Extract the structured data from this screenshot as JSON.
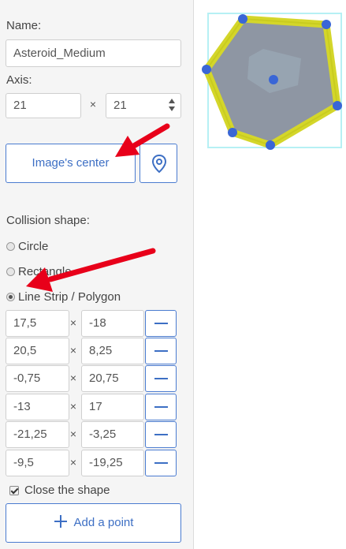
{
  "panel": {
    "name_label": "Name:",
    "name_value": "Asteroid_Medium",
    "axis_label": "Axis:",
    "axis_x": "21",
    "axis_sep": "×",
    "axis_y": "21",
    "center_button": "Image's center",
    "collision_label": "Collision shape:",
    "shape_options": [
      "Circle",
      "Rectangle",
      "Line Strip / Polygon"
    ],
    "selected_shape": "Line Strip / Polygon",
    "points": [
      {
        "x": "17,5",
        "y": "-18"
      },
      {
        "x": "20,5",
        "y": "8,25"
      },
      {
        "x": "-0,75",
        "y": "20,75"
      },
      {
        "x": "-13",
        "y": "17"
      },
      {
        "x": "-21,25",
        "y": "-3,25"
      },
      {
        "x": "-9,5",
        "y": "-19,25"
      }
    ],
    "close_shape_label": "Close the shape",
    "close_shape_checked": true,
    "add_point_label": "Add a point"
  },
  "colors": {
    "accent": "#3d6fc4",
    "handle": "#3a66d6",
    "outline": "#d4d62a",
    "annotation_arrow": "#e8001a"
  }
}
